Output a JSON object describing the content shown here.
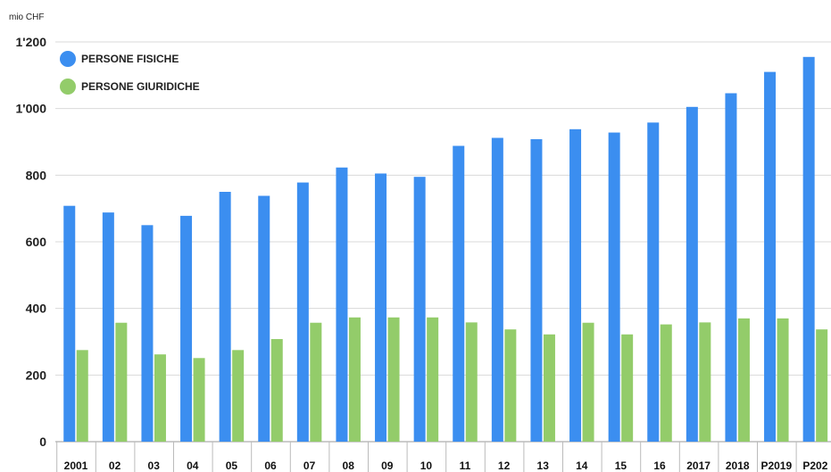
{
  "chart_data": {
    "type": "bar",
    "unit_label": "mio CHF",
    "categories": [
      "2001",
      "02",
      "03",
      "04",
      "05",
      "06",
      "07",
      "08",
      "09",
      "10",
      "11",
      "12",
      "13",
      "14",
      "15",
      "16",
      "2017",
      "2018",
      "P2019",
      "P202"
    ],
    "series": [
      {
        "name": "PERSONE FISICHE",
        "color": "#3b8ef0",
        "values": [
          708,
          688,
          650,
          678,
          750,
          738,
          778,
          823,
          805,
          795,
          888,
          912,
          908,
          938,
          928,
          958,
          1005,
          1046,
          1110,
          1155
        ]
      },
      {
        "name": "PERSONE GIURIDICHE",
        "color": "#93cc6a",
        "values": [
          275,
          357,
          262,
          251,
          275,
          308,
          357,
          373,
          373,
          373,
          358,
          337,
          322,
          357,
          322,
          352,
          358,
          370,
          370,
          337
        ]
      }
    ],
    "ylim": [
      0,
      1200
    ],
    "yticks": [
      {
        "value": 0,
        "label": "0"
      },
      {
        "value": 200,
        "label": "200"
      },
      {
        "value": 400,
        "label": "400"
      },
      {
        "value": 600,
        "label": "600"
      },
      {
        "value": 800,
        "label": "800"
      },
      {
        "value": 1000,
        "label": "1'000"
      },
      {
        "value": 1200,
        "label": "1'200"
      }
    ],
    "grid": true,
    "legend_position": "top-left"
  }
}
